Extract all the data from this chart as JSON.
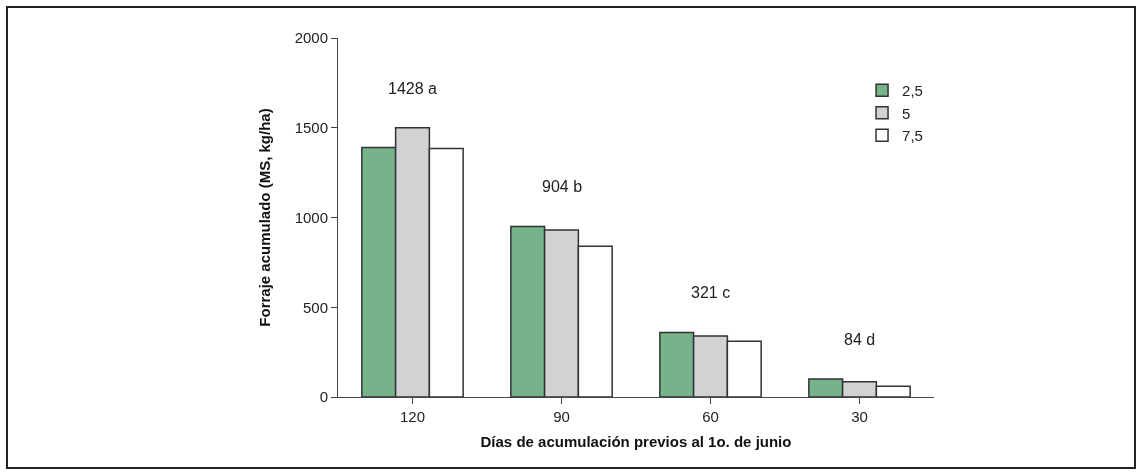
{
  "chart_data": {
    "type": "bar",
    "xlabel": "Días de acumulación previos al 1o. de junio",
    "ylabel": "Forraje acumulado (MS, kg/ha)",
    "categories": [
      "120",
      "90",
      "60",
      "30"
    ],
    "series": [
      {
        "name": "2,5",
        "color": "#76b38a",
        "values": [
          1390,
          950,
          360,
          100
        ]
      },
      {
        "name": "5",
        "color": "#d1d2d4",
        "values": [
          1500,
          930,
          340,
          85
        ]
      },
      {
        "name": "7,5",
        "color": "#ffffff",
        "values": [
          1385,
          840,
          310,
          60
        ]
      }
    ],
    "ylim": [
      0,
      2000
    ],
    "yticks": [
      0,
      500,
      1000,
      1500,
      2000
    ],
    "grid": false,
    "legend": "top right",
    "annotations": [
      "1428 a",
      "904 b",
      "321 c",
      "84 d"
    ]
  }
}
